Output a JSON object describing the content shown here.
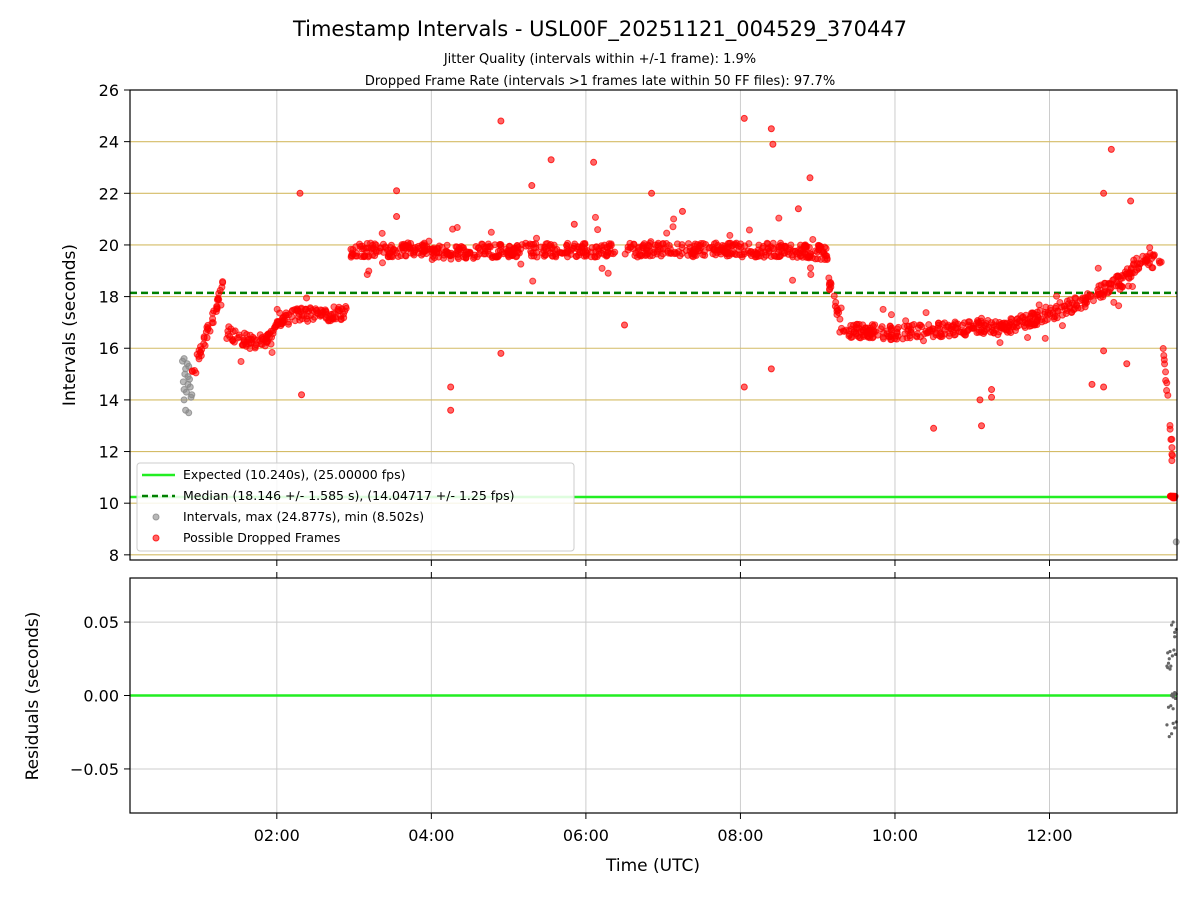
{
  "chart_data": [
    {
      "id": "intervals",
      "type": "scatter",
      "title": "Timestamp Intervals - USL00F_20251121_004529_370447",
      "subtitle_lines": [
        "Jitter Quality (intervals within +/-1 frame): 1.9%",
        "Dropped Frame Rate (intervals >1 frames late within 50 FF files): 97.7%"
      ],
      "xlabel": "",
      "ylabel": "Intervals (seconds)",
      "x_unit": "hours UTC",
      "xlim": [
        0.1,
        13.65
      ],
      "ylim": [
        7.8,
        26
      ],
      "yticks": [
        8,
        10,
        12,
        14,
        16,
        18,
        20,
        22,
        24,
        26
      ],
      "ytick_labels": [
        "8",
        "10",
        "12",
        "14",
        "16",
        "18",
        "20",
        "22",
        "24",
        "26"
      ],
      "xticks": [
        2,
        4,
        6,
        8,
        10,
        12
      ],
      "grid": true,
      "reference_lines": {
        "expected": 10.24,
        "median": 18.146
      },
      "legend": {
        "placement": "lower-left",
        "entries": [
          {
            "label": "Expected (10.240s), (25.00000 fps)",
            "style": "solid-line",
            "color": "#22ee22"
          },
          {
            "label": "Median (18.146 +/- 1.585 s), (14.04717 +/- 1.25 fps)",
            "style": "dashed-line",
            "color": "#008000"
          },
          {
            "label": "Intervals, max (24.877s), min (8.502s)",
            "style": "marker",
            "color": "#888888"
          },
          {
            "label": "Possible Dropped Frames",
            "style": "marker",
            "color": "#ff0000"
          }
        ]
      },
      "trend_segments": [
        {
          "name": "rise",
          "x": [
            0.9,
            1.0,
            1.1,
            1.2,
            1.3
          ],
          "y": [
            15.0,
            15.8,
            16.6,
            17.4,
            18.5
          ]
        },
        {
          "name": "dip",
          "x": [
            1.35,
            1.5,
            1.7,
            1.9,
            2.0
          ],
          "y": [
            16.6,
            16.4,
            16.2,
            16.4,
            16.8
          ]
        },
        {
          "name": "mid",
          "x": [
            2.0,
            2.3,
            2.6,
            2.9
          ],
          "y": [
            17.1,
            17.3,
            17.3,
            17.4
          ]
        },
        {
          "name": "plateau-a",
          "x": [
            2.95,
            3.5,
            4.0
          ],
          "y": [
            19.8,
            19.8,
            19.9
          ]
        },
        {
          "name": "plateau-b",
          "x": [
            4.0,
            5.0,
            6.0,
            6.4
          ],
          "y": [
            19.7,
            19.8,
            19.8,
            19.8
          ]
        },
        {
          "name": "plateau-c",
          "x": [
            6.5,
            7.5,
            8.5,
            9.15
          ],
          "y": [
            19.8,
            19.8,
            19.8,
            19.7
          ]
        },
        {
          "name": "drop",
          "x": [
            9.15,
            9.3
          ],
          "y": [
            18.5,
            16.8
          ]
        },
        {
          "name": "low",
          "x": [
            9.3,
            10.0,
            10.5,
            11.0,
            11.5
          ],
          "y": [
            16.7,
            16.6,
            16.7,
            16.8,
            16.8
          ]
        },
        {
          "name": "climb",
          "x": [
            11.5,
            12.0,
            12.5,
            12.9
          ],
          "y": [
            16.9,
            17.3,
            17.9,
            18.6
          ]
        },
        {
          "name": "tail",
          "x": [
            12.9,
            13.1,
            13.3,
            13.45
          ],
          "y": [
            18.4,
            19.2,
            19.4,
            19.3
          ]
        },
        {
          "name": "fall",
          "x": [
            13.45,
            13.5,
            13.55,
            13.6
          ],
          "y": [
            16.5,
            15.0,
            13.5,
            11.5
          ]
        }
      ],
      "gray_points": {
        "x": [
          0.78,
          0.8,
          0.82,
          0.85,
          0.88,
          0.9,
          0.8,
          0.86,
          0.79,
          0.83,
          0.87,
          0.81,
          0.84,
          0.89,
          0.82,
          0.85,
          0.8,
          0.86,
          13.64
        ],
        "y": [
          15.5,
          15.6,
          15.2,
          14.9,
          14.5,
          14.2,
          14.0,
          13.5,
          14.7,
          14.3,
          14.8,
          15.0,
          15.4,
          14.1,
          13.6,
          14.6,
          14.4,
          15.3,
          8.5
        ]
      },
      "outliers": {
        "x": [
          2.3,
          2.32,
          4.9,
          5.3,
          5.55,
          6.1,
          6.85,
          8.05,
          8.4,
          8.42,
          8.9,
          4.25,
          4.25,
          4.9,
          8.05,
          8.4,
          10.5,
          11.1,
          11.12,
          12.7,
          13.05,
          12.8,
          12.7,
          3.55,
          3.55,
          5.85,
          6.5,
          7.25,
          8.75,
          11.25,
          11.25,
          12.55,
          12.7,
          13.0
        ],
        "y": [
          22.0,
          14.2,
          24.8,
          22.3,
          23.3,
          23.2,
          22.0,
          24.9,
          24.5,
          23.9,
          22.6,
          14.5,
          13.6,
          15.8,
          14.5,
          15.2,
          12.9,
          14.0,
          13.0,
          22.0,
          21.7,
          23.7,
          15.9,
          22.1,
          21.1,
          20.8,
          16.9,
          21.3,
          21.4,
          14.4,
          14.1,
          14.6,
          14.5,
          15.4
        ]
      }
    },
    {
      "id": "residuals",
      "type": "scatter",
      "xlabel": "Time (UTC)",
      "ylabel": "Residuals (seconds)",
      "xlim": [
        0.1,
        13.65
      ],
      "ylim": [
        -0.08,
        0.08
      ],
      "yticks": [
        -0.05,
        0.0,
        0.05
      ],
      "ytick_labels": [
        "−0.05",
        "0.00",
        "0.05"
      ],
      "xticks": [
        2,
        4,
        6,
        8,
        10,
        12
      ],
      "xtick_labels": [
        "02:00",
        "04:00",
        "06:00",
        "08:00",
        "10:00",
        "12:00"
      ],
      "grid": true,
      "reference_lines": {
        "zero": 0.0
      },
      "points": {
        "x": [
          13.52,
          13.53,
          13.54,
          13.55,
          13.56,
          13.57,
          13.58,
          13.59,
          13.6,
          13.61,
          13.62,
          13.63,
          13.64,
          13.52,
          13.55,
          13.58,
          13.6,
          13.62,
          13.64,
          13.53,
          13.56,
          13.59,
          13.61,
          13.63,
          13.54,
          13.57,
          13.6,
          13.62,
          13.64,
          13.58,
          13.6,
          13.62
        ],
        "y": [
          0.02,
          0.019,
          0.022,
          0.025,
          0.018,
          0.02,
          0.0,
          0.001,
          -0.001,
          0.0,
          0.002,
          -0.002,
          0.001,
          -0.02,
          -0.028,
          -0.026,
          -0.019,
          -0.022,
          -0.018,
          0.029,
          0.03,
          0.027,
          0.031,
          0.028,
          -0.008,
          -0.007,
          -0.009,
          0.04,
          0.045,
          0.048,
          0.05,
          0.043
        ]
      }
    }
  ]
}
